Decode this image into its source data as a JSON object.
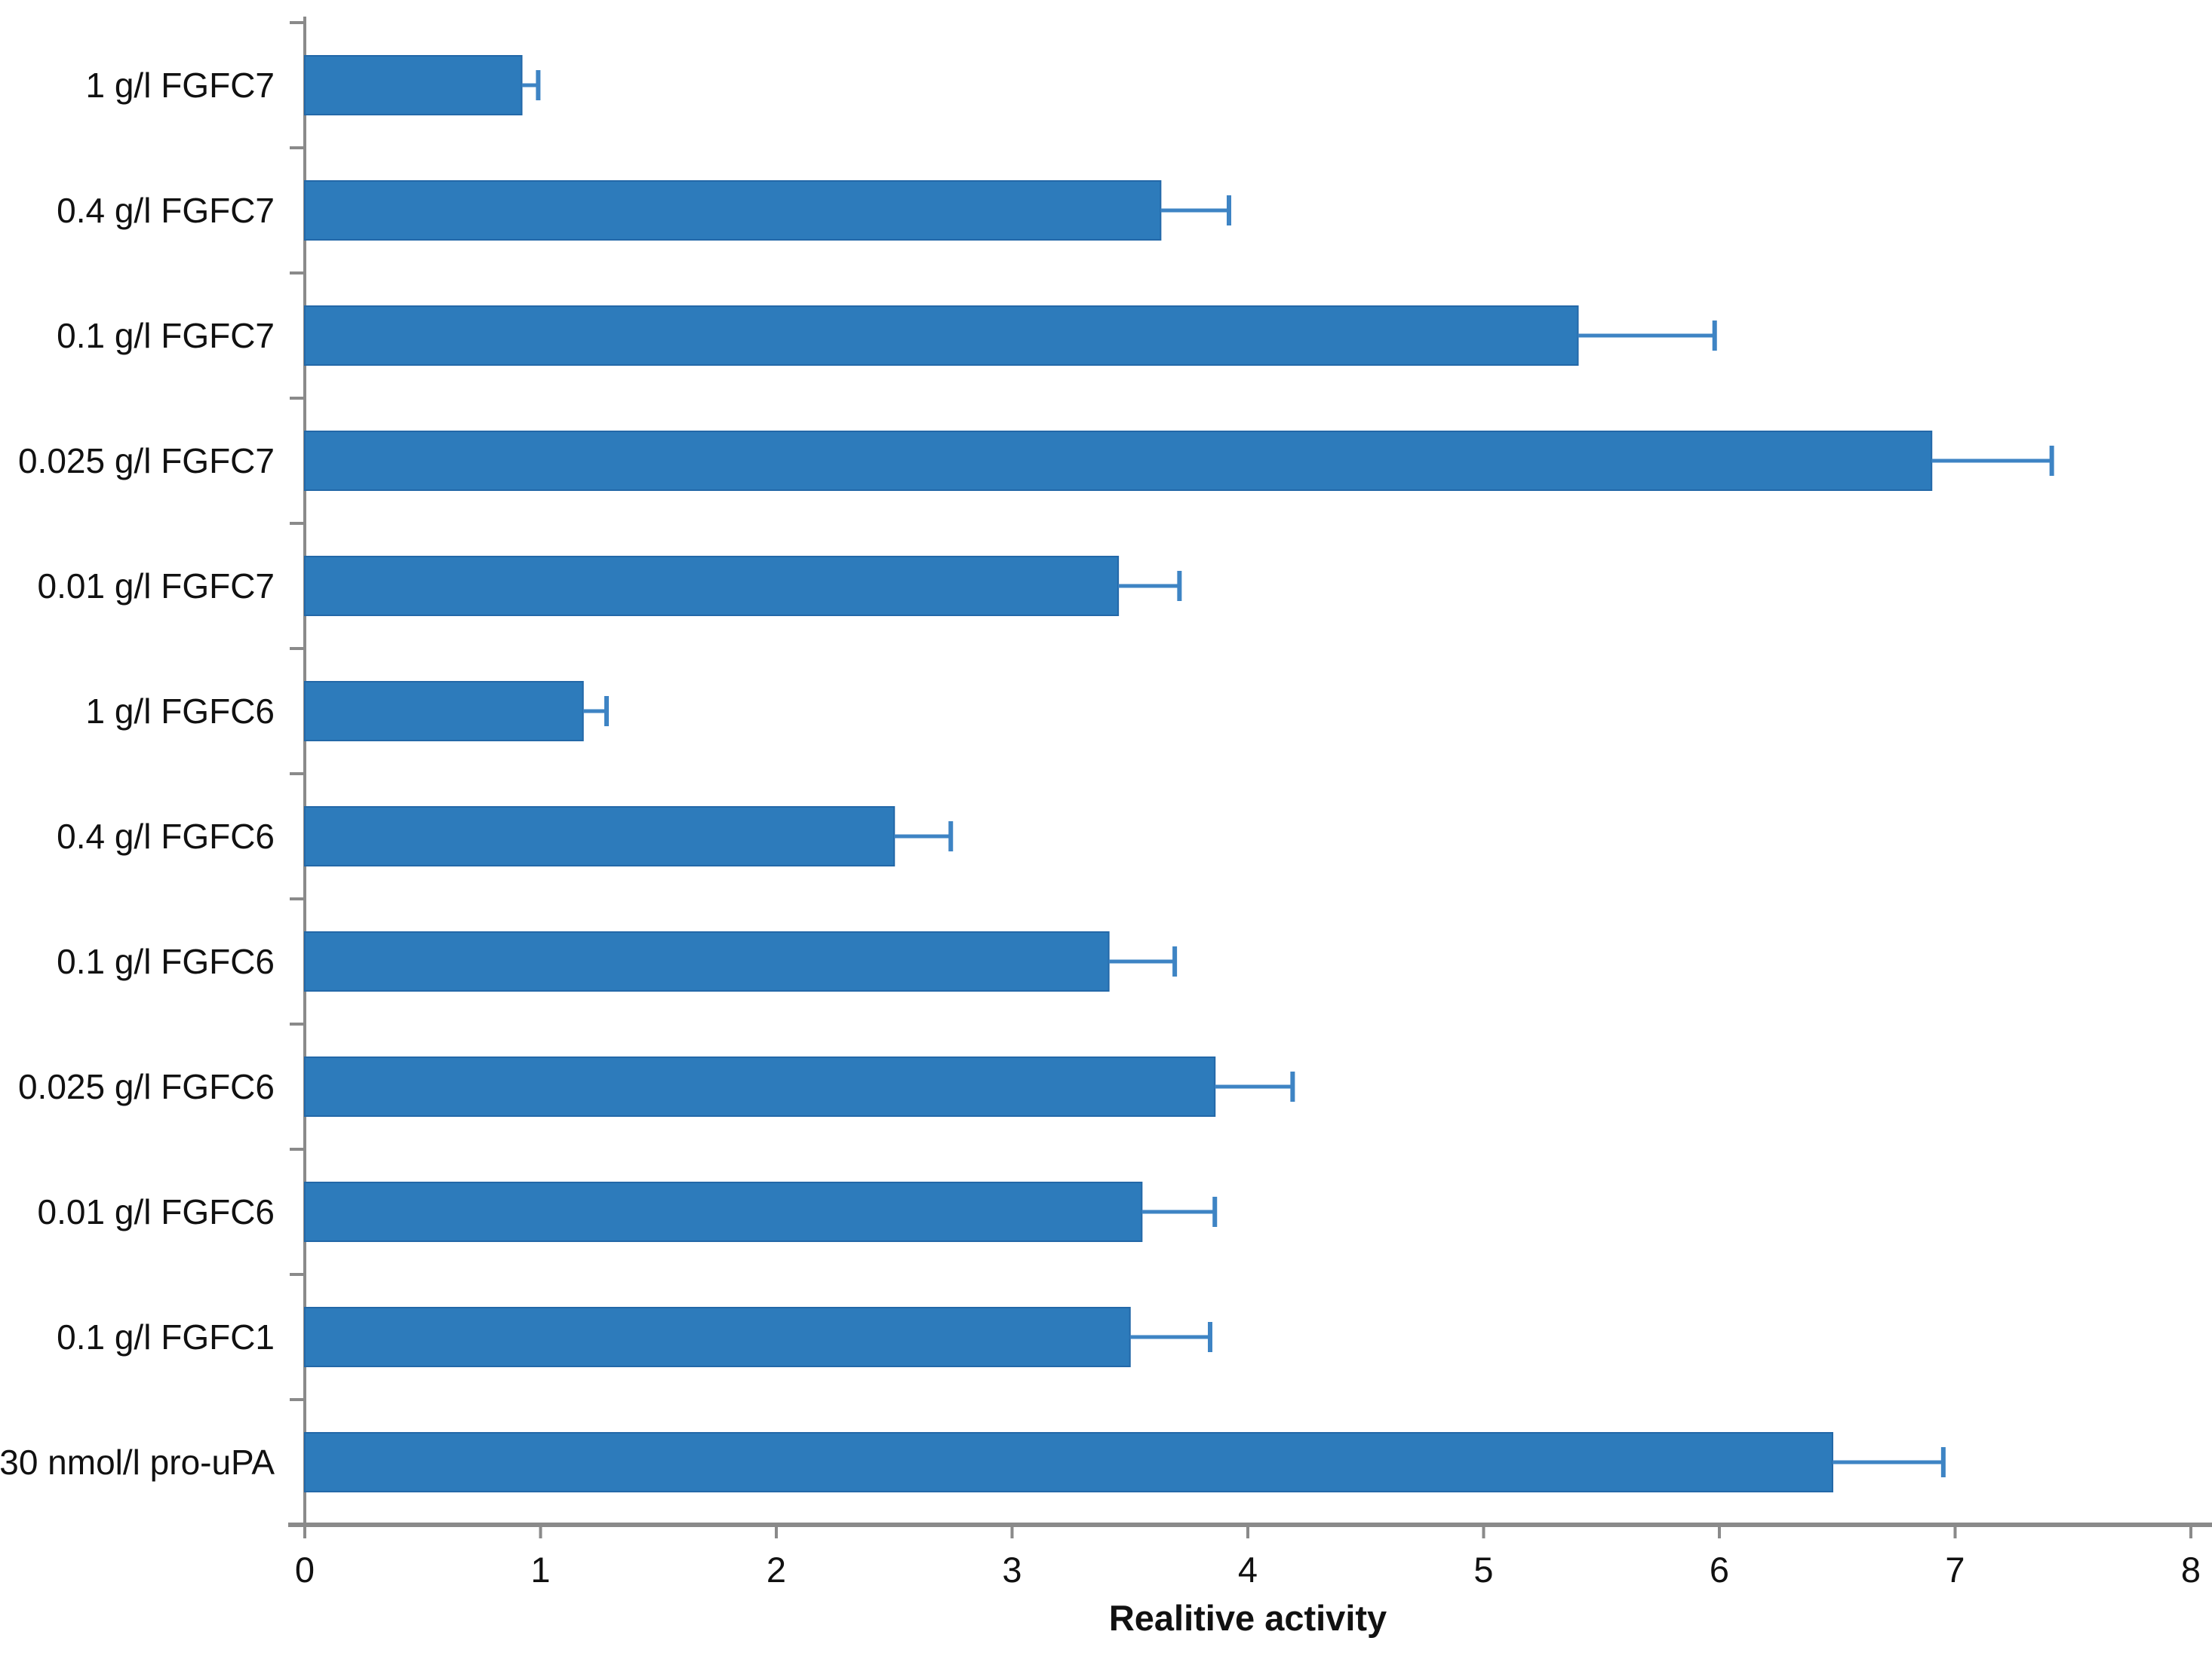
{
  "chart_data": {
    "type": "bar",
    "orientation": "horizontal",
    "title": "",
    "xlabel": "Realitive activity",
    "ylabel": "",
    "xlim": [
      0,
      8
    ],
    "xticks": [
      0,
      1,
      2,
      3,
      4,
      5,
      6,
      7,
      8
    ],
    "grid": false,
    "legend": "none",
    "background_color": "#ffffff",
    "bar_color": "#2D7BBB",
    "bar_edge_color": "#2368A8",
    "error_bar_color": "#3E84C4",
    "axis_color": "#8A8A8A",
    "text_color": "#111111",
    "categories": [
      "1 g/l FGFC7",
      "0.4 g/l FGFC7",
      "0.1 g/l FGFC7",
      "0.025 g/l FGFC7",
      "0.01 g/l FGFC7",
      "1 g/l FGFC6",
      "0.4 g/l FGFC6",
      "0.1 g/l FGFC6",
      "0.025 g/l FGFC6",
      "0.01 g/l FGFC6",
      "0.1 g/l FGFC1",
      "30 nmol/l pro-uPA"
    ],
    "values": [
      0.92,
      3.63,
      5.4,
      6.9,
      3.45,
      1.18,
      2.5,
      3.41,
      3.86,
      3.55,
      3.5,
      6.48
    ],
    "errors_plus": [
      0.07,
      0.29,
      0.58,
      0.51,
      0.26,
      0.1,
      0.24,
      0.28,
      0.33,
      0.31,
      0.34,
      0.47
    ]
  }
}
